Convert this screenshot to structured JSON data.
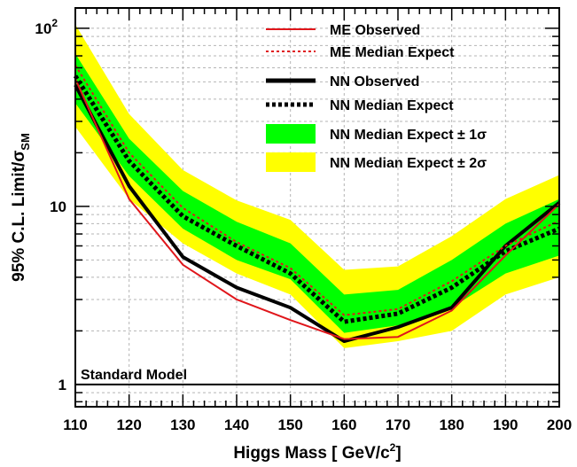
{
  "chart_data": {
    "type": "line",
    "xlabel": "Higgs Mass [ GeV/c",
    "xlabel_sup": "2",
    "xlabel_end": "]",
    "ylabel": "95% C.L. Limit/σ",
    "ylabel_sub": "SM",
    "xlim": [
      110,
      200
    ],
    "ylim": [
      0.75,
      130
    ],
    "y_scale": "log",
    "grid": true,
    "legend_position": "top-right",
    "x_ticks": [
      110,
      120,
      130,
      140,
      150,
      160,
      170,
      180,
      190,
      200
    ],
    "x_tick_labels": [
      "110",
      "120",
      "130",
      "140",
      "150",
      "160",
      "170",
      "180",
      "190",
      "200"
    ],
    "y_ticks": [
      {
        "value": 1,
        "label": "1"
      },
      {
        "value": 10,
        "label": "10"
      },
      {
        "value": 100,
        "label": "10",
        "sup": "2"
      }
    ],
    "x": [
      110,
      120,
      130,
      140,
      150,
      160,
      170,
      180,
      190,
      200
    ],
    "bands": [
      {
        "name": "NN Median Expect ± 2σ",
        "color": "#ffff00",
        "lower": [
          28,
          11,
          6.2,
          4.2,
          3.2,
          1.6,
          1.75,
          2.0,
          3.2,
          4.0
        ],
        "upper": [
          105,
          33,
          16,
          10.8,
          8.4,
          4.4,
          4.6,
          6.8,
          11,
          15
        ]
      },
      {
        "name": "NN Median Expect ± 1σ",
        "color": "#00ff00",
        "lower": [
          38,
          14.8,
          7.5,
          5.0,
          3.9,
          1.95,
          2.15,
          2.7,
          4.2,
          5.3
        ],
        "upper": [
          72,
          24,
          12.2,
          8.2,
          6.2,
          3.2,
          3.4,
          5.0,
          8.0,
          11
        ]
      }
    ],
    "series": [
      {
        "name": "ME Observed",
        "color": "#e0161b",
        "style": "solid",
        "width": 2,
        "values": [
          52,
          11,
          4.7,
          3.0,
          2.3,
          1.8,
          1.85,
          2.6,
          5.3,
          10.3
        ]
      },
      {
        "name": "ME Median Expect",
        "color": "#e0161b",
        "style": "dotted",
        "width": 2,
        "values": [
          62,
          20,
          9.8,
          6.3,
          4.5,
          2.45,
          2.65,
          3.8,
          6.0,
          8.3
        ]
      },
      {
        "name": "NN Observed",
        "color": "#000000",
        "style": "solid",
        "width": 4,
        "values": [
          48,
          13,
          5.2,
          3.5,
          2.7,
          1.75,
          2.1,
          2.7,
          6.0,
          10.5
        ]
      },
      {
        "name": "NN Median Expect",
        "color": "#000000",
        "style": "dotted",
        "width": 5,
        "values": [
          54,
          18,
          8.8,
          6.0,
          4.2,
          2.25,
          2.5,
          3.5,
          5.6,
          7.5
        ]
      }
    ],
    "reference_line": {
      "value": 1,
      "label": "Standard Model",
      "color": "#000000"
    },
    "legend": [
      {
        "label": "ME Observed",
        "kind": "line",
        "color": "#e0161b",
        "style": "solid"
      },
      {
        "label": "ME Median Expect",
        "kind": "line",
        "color": "#e0161b",
        "style": "dotted"
      },
      {
        "label": "NN Observed",
        "kind": "line",
        "color": "#000000",
        "style": "solid"
      },
      {
        "label": "NN Median Expect",
        "kind": "line",
        "color": "#000000",
        "style": "dotted"
      },
      {
        "label": "NN Median Expect ± 1σ",
        "kind": "box",
        "color": "#00ff00"
      },
      {
        "label": "NN Median Expect ± 2σ",
        "kind": "box",
        "color": "#ffff00"
      }
    ]
  }
}
